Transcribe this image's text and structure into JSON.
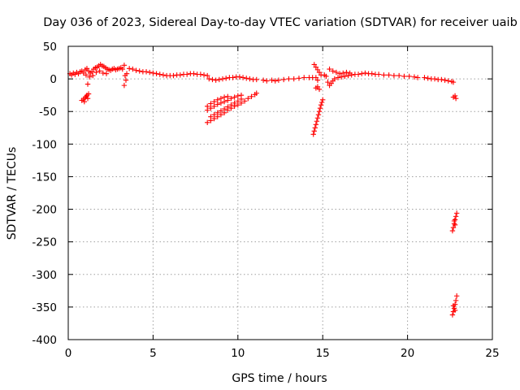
{
  "chart_data": {
    "type": "scatter",
    "title": "Day 036 of 2023, Sidereal Day-to-day VTEC variation (SDTVAR) for receiver uaib",
    "xlabel": "GPS time / hours",
    "ylabel": "SDTVAR / TECUs",
    "xlim": [
      0,
      25
    ],
    "ylim": [
      -400,
      50
    ],
    "xticks": [
      0,
      5,
      10,
      15,
      20,
      25
    ],
    "yticks": [
      50,
      0,
      -50,
      -100,
      -150,
      -200,
      -250,
      -300,
      -350,
      -400
    ],
    "grid": true,
    "marker": "+",
    "color": "#ff0000",
    "series": [
      {
        "name": "SDTVAR",
        "points": [
          [
            0.1,
            8
          ],
          [
            0.2,
            6
          ],
          [
            0.3,
            9
          ],
          [
            0.4,
            7
          ],
          [
            0.5,
            10
          ],
          [
            0.6,
            8
          ],
          [
            0.7,
            11
          ],
          [
            0.8,
            12
          ],
          [
            0.9,
            9
          ],
          [
            1.0,
            14
          ],
          [
            1.1,
            16
          ],
          [
            1.2,
            12
          ],
          [
            1.3,
            9
          ],
          [
            1.4,
            11
          ],
          [
            1.5,
            15
          ],
          [
            1.6,
            17
          ],
          [
            1.7,
            18
          ],
          [
            1.8,
            20
          ],
          [
            1.9,
            22
          ],
          [
            2.0,
            20
          ],
          [
            2.1,
            19
          ],
          [
            2.2,
            17
          ],
          [
            2.3,
            15
          ],
          [
            2.4,
            14
          ],
          [
            2.5,
            13
          ],
          [
            2.6,
            15
          ],
          [
            2.7,
            16
          ],
          [
            2.8,
            14
          ],
          [
            2.9,
            15
          ],
          [
            3.0,
            16
          ],
          [
            3.1,
            17
          ],
          [
            3.2,
            15
          ],
          [
            1.05,
            6
          ],
          [
            1.25,
            3
          ],
          [
            1.45,
            5
          ],
          [
            1.65,
            10
          ],
          [
            1.85,
            12
          ],
          [
            2.05,
            9
          ],
          [
            2.25,
            8
          ],
          [
            1.15,
            -8
          ],
          [
            0.8,
            -33
          ],
          [
            0.9,
            -31
          ],
          [
            1.0,
            -29
          ],
          [
            1.05,
            -27
          ],
          [
            1.1,
            -25
          ],
          [
            1.2,
            -23
          ],
          [
            1.15,
            -30
          ],
          [
            0.95,
            -35
          ],
          [
            3.3,
            21
          ],
          [
            3.35,
            5
          ],
          [
            3.3,
            -10
          ],
          [
            3.4,
            -2
          ],
          [
            3.45,
            8
          ],
          [
            3.6,
            16
          ],
          [
            3.8,
            15
          ],
          [
            4.0,
            13
          ],
          [
            4.2,
            12
          ],
          [
            4.4,
            11
          ],
          [
            4.6,
            11
          ],
          [
            4.8,
            10
          ],
          [
            5.0,
            9
          ],
          [
            5.2,
            8
          ],
          [
            5.4,
            7
          ],
          [
            5.6,
            6
          ],
          [
            5.8,
            5
          ],
          [
            6.0,
            5
          ],
          [
            6.2,
            5
          ],
          [
            6.4,
            6
          ],
          [
            6.6,
            6
          ],
          [
            6.8,
            7
          ],
          [
            7.0,
            7
          ],
          [
            7.2,
            8
          ],
          [
            7.4,
            8
          ],
          [
            7.6,
            7
          ],
          [
            7.8,
            7
          ],
          [
            8.0,
            6
          ],
          [
            8.2,
            5
          ],
          [
            8.3,
            0
          ],
          [
            8.5,
            -1
          ],
          [
            8.7,
            -2
          ],
          [
            8.9,
            -1
          ],
          [
            9.1,
            0
          ],
          [
            9.3,
            1
          ],
          [
            9.5,
            2
          ],
          [
            9.7,
            2
          ],
          [
            9.9,
            3
          ],
          [
            10.1,
            3
          ],
          [
            10.3,
            2
          ],
          [
            10.5,
            1
          ],
          [
            10.7,
            0
          ],
          [
            10.9,
            -1
          ],
          [
            11.1,
            -1
          ],
          [
            8.2,
            -48
          ],
          [
            8.4,
            -45
          ],
          [
            8.6,
            -42
          ],
          [
            8.8,
            -39
          ],
          [
            9.0,
            -37
          ],
          [
            9.2,
            -35
          ],
          [
            9.4,
            -33
          ],
          [
            9.6,
            -30
          ],
          [
            9.8,
            -28
          ],
          [
            10.0,
            -26
          ],
          [
            10.2,
            -25
          ],
          [
            8.2,
            -42
          ],
          [
            8.4,
            -38
          ],
          [
            8.6,
            -35
          ],
          [
            8.8,
            -32
          ],
          [
            9.0,
            -30
          ],
          [
            9.2,
            -28
          ],
          [
            9.4,
            -27
          ],
          [
            8.2,
            -67
          ],
          [
            8.4,
            -64
          ],
          [
            8.6,
            -61
          ],
          [
            8.8,
            -58
          ],
          [
            9.0,
            -55
          ],
          [
            9.2,
            -52
          ],
          [
            9.4,
            -48
          ],
          [
            9.6,
            -45
          ],
          [
            9.8,
            -42
          ],
          [
            10.0,
            -40
          ],
          [
            10.2,
            -37
          ],
          [
            10.4,
            -34
          ],
          [
            10.6,
            -30
          ],
          [
            10.8,
            -27
          ],
          [
            11.0,
            -24
          ],
          [
            11.1,
            -22
          ],
          [
            8.4,
            -58
          ],
          [
            8.6,
            -55
          ],
          [
            8.8,
            -52
          ],
          [
            9.0,
            -49
          ],
          [
            9.2,
            -46
          ],
          [
            9.4,
            -43
          ],
          [
            9.6,
            -40
          ],
          [
            9.8,
            -37
          ],
          [
            10.0,
            -34
          ],
          [
            10.2,
            -31
          ],
          [
            11.5,
            -2
          ],
          [
            11.7,
            -3
          ],
          [
            12.0,
            -2
          ],
          [
            12.2,
            -3
          ],
          [
            12.4,
            -2
          ],
          [
            12.7,
            -1
          ],
          [
            13.0,
            0
          ],
          [
            13.3,
            0
          ],
          [
            13.6,
            1
          ],
          [
            13.9,
            2
          ],
          [
            14.2,
            2
          ],
          [
            14.4,
            2
          ],
          [
            14.5,
            22
          ],
          [
            14.6,
            18
          ],
          [
            14.7,
            14
          ],
          [
            14.8,
            10
          ],
          [
            14.9,
            6
          ],
          [
            14.6,
            2
          ],
          [
            14.7,
            -2
          ],
          [
            14.6,
            -14
          ],
          [
            14.7,
            -12
          ],
          [
            14.8,
            -16
          ],
          [
            14.45,
            -85
          ],
          [
            14.5,
            -80
          ],
          [
            14.55,
            -75
          ],
          [
            14.6,
            -70
          ],
          [
            14.65,
            -65
          ],
          [
            14.7,
            -60
          ],
          [
            14.75,
            -55
          ],
          [
            14.8,
            -50
          ],
          [
            14.85,
            -45
          ],
          [
            14.9,
            -40
          ],
          [
            14.95,
            -36
          ],
          [
            15.0,
            -32
          ],
          [
            15.1,
            6
          ],
          [
            15.2,
            4
          ],
          [
            15.3,
            -5
          ],
          [
            15.4,
            -10
          ],
          [
            15.5,
            -7
          ],
          [
            15.6,
            -3
          ],
          [
            15.7,
            0
          ],
          [
            15.9,
            2
          ],
          [
            16.1,
            3
          ],
          [
            16.3,
            4
          ],
          [
            16.5,
            5
          ],
          [
            16.7,
            6
          ],
          [
            16.9,
            7
          ],
          [
            17.1,
            7
          ],
          [
            17.3,
            8
          ],
          [
            17.5,
            9
          ],
          [
            17.7,
            8
          ],
          [
            17.9,
            8
          ],
          [
            18.1,
            7
          ],
          [
            18.3,
            7
          ],
          [
            18.6,
            6
          ],
          [
            18.9,
            6
          ],
          [
            19.2,
            5
          ],
          [
            19.5,
            5
          ],
          [
            19.8,
            4
          ],
          [
            20.1,
            4
          ],
          [
            20.4,
            3
          ],
          [
            20.6,
            2
          ],
          [
            15.4,
            15
          ],
          [
            15.6,
            12
          ],
          [
            15.8,
            10
          ],
          [
            16.0,
            8
          ],
          [
            16.2,
            9
          ],
          [
            16.4,
            10
          ],
          [
            16.6,
            9
          ],
          [
            21.0,
            2
          ],
          [
            21.2,
            1
          ],
          [
            21.4,
            0
          ],
          [
            21.6,
            0
          ],
          [
            21.8,
            -1
          ],
          [
            22.0,
            -1
          ],
          [
            22.2,
            -2
          ],
          [
            22.4,
            -3
          ],
          [
            22.6,
            -4
          ],
          [
            22.7,
            -5
          ],
          [
            22.7,
            -28
          ],
          [
            22.8,
            -26
          ],
          [
            22.85,
            -30
          ],
          [
            22.65,
            -233
          ],
          [
            22.7,
            -228
          ],
          [
            22.75,
            -222
          ],
          [
            22.8,
            -216
          ],
          [
            22.85,
            -211
          ],
          [
            22.9,
            -206
          ],
          [
            22.75,
            -218
          ],
          [
            22.8,
            -224
          ],
          [
            22.65,
            -362
          ],
          [
            22.7,
            -357
          ],
          [
            22.75,
            -352
          ],
          [
            22.8,
            -346
          ],
          [
            22.85,
            -340
          ],
          [
            22.9,
            -333
          ],
          [
            22.7,
            -348
          ],
          [
            22.8,
            -355
          ]
        ]
      }
    ]
  }
}
